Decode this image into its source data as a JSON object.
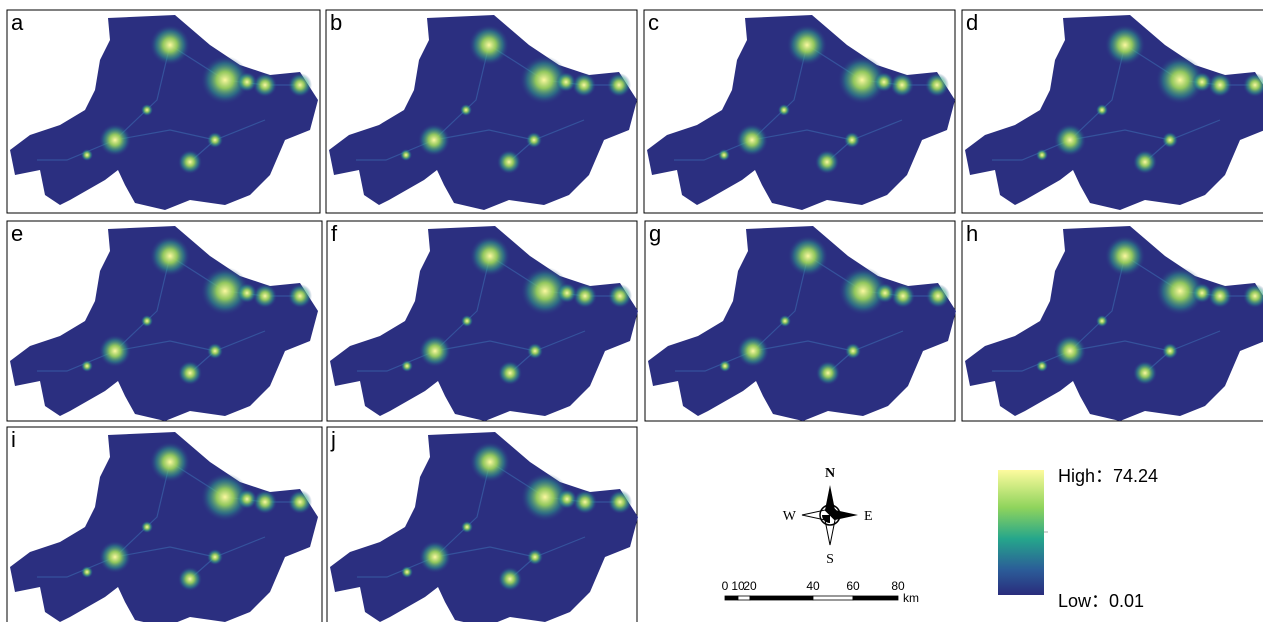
{
  "panels": [
    {
      "label": "a"
    },
    {
      "label": "b"
    },
    {
      "label": "c"
    },
    {
      "label": "d"
    },
    {
      "label": "e"
    },
    {
      "label": "f"
    },
    {
      "label": "g"
    },
    {
      "label": "h"
    },
    {
      "label": "i"
    },
    {
      "label": "j"
    }
  ],
  "compass": {
    "n": "N",
    "s": "S",
    "e": "E",
    "w": "W"
  },
  "scale_bar": {
    "ticks": [
      "0",
      "10",
      "20",
      "40",
      "60",
      "80"
    ],
    "unit": "km"
  },
  "legend": {
    "high": "High：74.24",
    "low": "Low：0.01"
  }
}
